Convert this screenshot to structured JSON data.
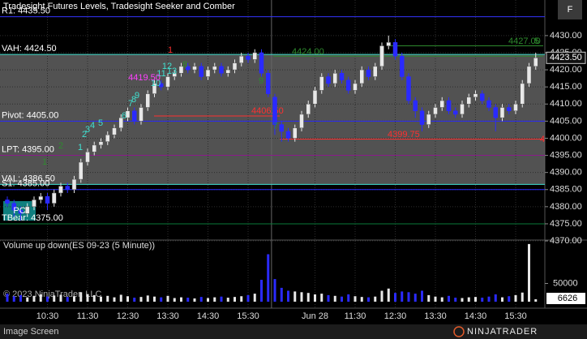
{
  "chart_data": {
    "type": "candlestick",
    "title": "Tradesight Futures Levels, Tradesight Seeker and Comber",
    "menu_button": "F",
    "pc_button": "PC",
    "background": "#000000",
    "up_color": "#e8e8e8",
    "down_color": "#2a2aff",
    "grid": true,
    "ylim": [
      4369.3,
      4440.4
    ],
    "yticks": [
      {
        "value": 4430,
        "label": "4430.00"
      },
      {
        "value": 4425,
        "label": "4425.00"
      },
      {
        "value": 4420,
        "label": "4420.00"
      },
      {
        "value": 4415,
        "label": "4415.00"
      },
      {
        "value": 4410,
        "label": "4410.00"
      },
      {
        "value": 4405,
        "label": "4405.00"
      },
      {
        "value": 4400,
        "label": "4400.00"
      },
      {
        "value": 4395,
        "label": "4395.00"
      },
      {
        "value": 4390,
        "label": "4390.00"
      },
      {
        "value": 4385,
        "label": "4385.00"
      },
      {
        "value": 4380,
        "label": "4380.00"
      },
      {
        "value": 4375,
        "label": "4375.00"
      },
      {
        "value": 4370,
        "label": "4370.00"
      }
    ],
    "last_price": {
      "value": 4423.5,
      "label": "4423.50"
    },
    "categories": [
      null,
      null,
      null,
      null,
      null,
      null,
      "10:30",
      null,
      null,
      null,
      null,
      null,
      "11:30",
      null,
      null,
      null,
      null,
      null,
      "12:30",
      null,
      null,
      null,
      null,
      null,
      "13:30",
      null,
      null,
      null,
      null,
      null,
      "14:30",
      null,
      null,
      null,
      null,
      null,
      "15:30",
      null,
      null,
      null,
      null,
      null,
      null,
      null,
      null,
      null,
      "Jun 28",
      null,
      null,
      null,
      null,
      null,
      "11:30",
      null,
      null,
      null,
      null,
      null,
      "12:30",
      null,
      null,
      null,
      null,
      null,
      "13:30",
      null,
      null,
      null,
      null,
      null,
      "14:30",
      null,
      null,
      null,
      null,
      null,
      "15:30",
      null,
      null,
      null
    ],
    "open": [
      4382,
      4381,
      4379,
      4378,
      4380,
      4382,
      4383,
      4381,
      4384,
      4386,
      4385,
      4388,
      4393,
      4396,
      4398,
      4399,
      4401,
      4403,
      4406,
      4408,
      4405,
      4409,
      4413,
      4416,
      4415,
      4418,
      4419,
      4421,
      4420,
      4421,
      4418,
      4420,
      4421,
      4419,
      4420,
      4422,
      4424,
      4423,
      4425,
      4419,
      4412,
      4404,
      4402,
      4400,
      4403,
      4407,
      4410,
      4414,
      4418,
      4416,
      4419,
      4417,
      4414,
      4416,
      4420,
      4418,
      4421,
      4427,
      4428,
      4424,
      4418,
      4411,
      4408,
      4404,
      4407,
      4409,
      4411,
      4408,
      4407,
      4410,
      4412,
      4413,
      4411,
      4409,
      4406,
      4409,
      4408,
      4410,
      4416,
      4421
    ],
    "high": [
      4383,
      4382,
      4380,
      4381,
      4383,
      4384,
      4384,
      4385,
      4387,
      4387,
      4389,
      4394,
      4397,
      4399,
      4400,
      4402,
      4404,
      4407,
      4409,
      4409,
      4410,
      4414,
      4417,
      4417,
      4419,
      4420,
      4422,
      4422,
      4422,
      4422,
      4421,
      4422,
      4422,
      4421,
      4423,
      4425,
      4425,
      4426,
      4426,
      4420,
      4413,
      4405,
      4403,
      4404,
      4408,
      4411,
      4415,
      4419,
      4419,
      4420,
      4420,
      4418,
      4417,
      4421,
      4421,
      4422,
      4428,
      4430,
      4429,
      4425,
      4419,
      4412,
      4409,
      4408,
      4410,
      4412,
      4412,
      4409,
      4411,
      4413,
      4414,
      4414,
      4412,
      4410,
      4410,
      4410,
      4411,
      4417,
      4422,
      4425
    ],
    "low": [
      4380,
      4377,
      4376,
      4377,
      4379,
      4381,
      4379,
      4380,
      4383,
      4384,
      4384,
      4387,
      4392,
      4395,
      4397,
      4398,
      4400,
      4402,
      4405,
      4404,
      4404,
      4408,
      4412,
      4414,
      4414,
      4417,
      4418,
      4419,
      4419,
      4417,
      4417,
      4419,
      4418,
      4418,
      4419,
      4421,
      4422,
      4422,
      4418,
      4412,
      4401,
      4399,
      4399,
      4399,
      4402,
      4406,
      4409,
      4413,
      4415,
      4415,
      4416,
      4413,
      4413,
      4415,
      4417,
      4417,
      4420,
      4426,
      4423,
      4417,
      4410,
      4406,
      4402,
      4403,
      4406,
      4408,
      4407,
      4406,
      4406,
      4409,
      4411,
      4410,
      4408,
      4402,
      4405,
      4407,
      4407,
      4409,
      4415,
      4420
    ],
    "close": [
      4381,
      4379,
      4378,
      4380,
      4382,
      4383,
      4381,
      4384,
      4386,
      4385,
      4388,
      4393,
      4396,
      4398,
      4399,
      4401,
      4403,
      4406,
      4408,
      4405,
      4409,
      4413,
      4416,
      4415,
      4418,
      4419,
      4421,
      4420,
      4421,
      4418,
      4420,
      4421,
      4419,
      4420,
      4422,
      4424,
      4423,
      4425,
      4419,
      4413,
      4404,
      4402,
      4400,
      4403,
      4407,
      4410,
      4414,
      4418,
      4416,
      4419,
      4417,
      4414,
      4416,
      4420,
      4418,
      4421,
      4427,
      4428,
      4424,
      4418,
      4411,
      4408,
      4404,
      4407,
      4409,
      4411,
      4408,
      4407,
      4410,
      4412,
      4413,
      4411,
      4409,
      4406,
      4409,
      4408,
      4410,
      4416,
      4421,
      4423.5
    ],
    "levels": [
      {
        "label": "R1: 4435.50",
        "value": 4435.5,
        "color": "#3535ff"
      },
      {
        "label": "VAH: 4424.50",
        "value": 4424.5,
        "color": "#40e0d0"
      },
      {
        "label": "Pivot: 4405.00",
        "value": 4405,
        "color": "#2a2aff"
      },
      {
        "label": "LPT: 4395.00",
        "value": 4395,
        "color": "#8b1a8b"
      },
      {
        "label": "VAL: 4386.50",
        "value": 4386.5,
        "color": "#40e0d0"
      },
      {
        "label": "S1: 4385.00",
        "value": 4385,
        "color": "#2a2aff"
      },
      {
        "label": "TBear: 4375.00",
        "value": 4375,
        "color": "#0a7a3a"
      }
    ],
    "value_area_color": "#6e6e6e",
    "signal_lines": [
      {
        "label": "4406.50",
        "value": 4406.5,
        "color": "#ff3030"
      },
      {
        "label": "4424.00",
        "value": 4424,
        "color": "#2e8b2e"
      },
      {
        "label": "4399.75",
        "value": 4399.75,
        "color": "#ff3030"
      },
      {
        "label": "4427.00",
        "value": 4427,
        "color": "#2e8b2e"
      }
    ],
    "annotations": [
      {
        "text": "1",
        "color": "#ff3030"
      },
      {
        "text": "1",
        "color": "#40e0d0"
      },
      {
        "text": "2",
        "color": "#40e0d0"
      },
      {
        "text": "3",
        "color": "#40e0d0"
      },
      {
        "text": "4",
        "color": "#40e0d0"
      },
      {
        "text": "5",
        "color": "#40e0d0"
      },
      {
        "text": "6",
        "color": "#40e0d0"
      },
      {
        "text": "7",
        "color": "#40e0d0"
      },
      {
        "text": "8",
        "color": "#40e0d0"
      },
      {
        "text": "9",
        "color": "#40e0d0"
      },
      {
        "text": "10",
        "color": "#40e0d0"
      },
      {
        "text": "11",
        "color": "#40e0d0"
      },
      {
        "text": "12",
        "color": "#40e0d0"
      },
      {
        "text": "13",
        "color": "#40e0d0"
      },
      {
        "text": "4419.50",
        "color": "#ff40ff"
      },
      {
        "text": "8",
        "color": "#2e8b2e"
      },
      {
        "text": "9",
        "color": "#2e8b2e"
      },
      {
        "text": "7",
        "color": "#2e8b2e"
      },
      {
        "text": "4",
        "color": "#ff3030"
      },
      {
        "text": "5",
        "color": "#2e8b2e"
      },
      {
        "text": "1",
        "color": "#2e8b2e"
      },
      {
        "text": "2",
        "color": "#2e8b2e"
      }
    ],
    "volume": {
      "title": "Volume up down(ES 09-23 (5 Minute))",
      "ylim": [
        0,
        160000
      ],
      "yticks": [
        50000
      ],
      "values": [
        22000,
        15000,
        18000,
        12000,
        16000,
        20000,
        14000,
        17000,
        19000,
        13000,
        15000,
        26000,
        21000,
        18000,
        14000,
        16000,
        12000,
        19000,
        15000,
        11000,
        13000,
        17000,
        14000,
        12000,
        16000,
        10000,
        12000,
        11000,
        9000,
        13000,
        10000,
        12000,
        14000,
        11000,
        13000,
        15000,
        18000,
        22000,
        60000,
        130000,
        62000,
        38000,
        30000,
        28000,
        26000,
        24000,
        20000,
        22000,
        18000,
        16000,
        14000,
        20000,
        15000,
        13000,
        12000,
        14000,
        30000,
        36000,
        24000,
        28000,
        26000,
        22000,
        30000,
        18000,
        14000,
        12000,
        16000,
        11000,
        10000,
        12000,
        13000,
        11000,
        14000,
        20000,
        12000,
        15000,
        18000,
        25000,
        158000,
        6626
      ]
    },
    "copyright": "© 2023 NinjaTrader, LLC",
    "status_text": "Image Screen",
    "logo_text": "NINJATRADER"
  }
}
